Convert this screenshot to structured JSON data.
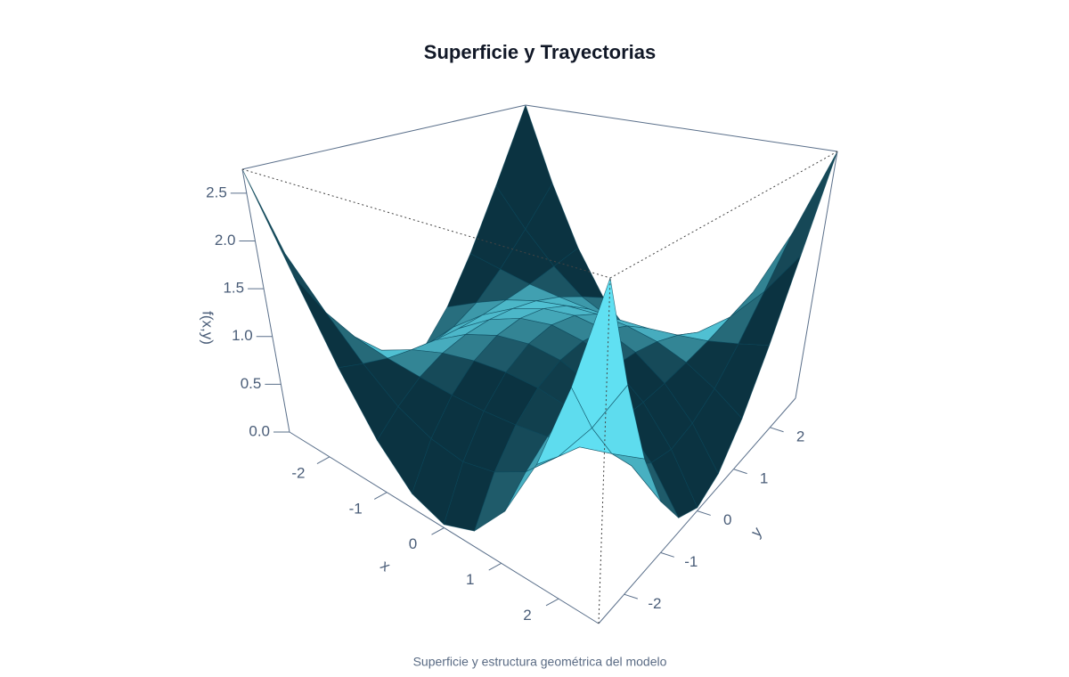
{
  "chart_data": {
    "type": "surface",
    "title": "Superficie y Trayectorias",
    "caption": "Superficie y estructura geométrica del modelo",
    "x_label": "x",
    "y_label": "y",
    "z_label": "f(x,y)",
    "x": [
      -2.7,
      -2.16,
      -1.62,
      -1.08,
      -0.54,
      0,
      0.54,
      1.08,
      1.62,
      2.16,
      2.7
    ],
    "y": [
      -2.7,
      -2.16,
      -1.62,
      -1.08,
      -0.54,
      0,
      0.54,
      1.08,
      1.62,
      2.16,
      2.7
    ],
    "z": [
      [
        2.75,
        1.77,
        1.01,
        0.47,
        0.14,
        0.03,
        0.14,
        0.47,
        1.01,
        1.77,
        2.75
      ],
      [
        1.77,
        1.3,
        0.93,
        0.66,
        0.51,
        0.45,
        0.51,
        0.66,
        0.93,
        1.3,
        1.77
      ],
      [
        1.01,
        0.93,
        0.86,
        0.82,
        0.79,
        0.78,
        0.79,
        0.82,
        0.86,
        0.93,
        1.01
      ],
      [
        0.47,
        0.66,
        0.82,
        0.93,
        0.99,
        1.01,
        0.99,
        0.93,
        0.82,
        0.66,
        0.47
      ],
      [
        0.14,
        0.51,
        0.79,
        0.99,
        1.11,
        1.15,
        1.11,
        0.99,
        0.79,
        0.51,
        0.14
      ],
      [
        0.03,
        0.45,
        0.78,
        1.01,
        1.15,
        1.2,
        1.15,
        1.01,
        0.78,
        0.45,
        0.03
      ],
      [
        0.14,
        0.51,
        0.79,
        0.99,
        1.11,
        1.15,
        1.11,
        0.99,
        0.79,
        0.51,
        0.14
      ],
      [
        0.47,
        0.66,
        0.82,
        0.93,
        0.99,
        1.01,
        0.99,
        0.93,
        0.82,
        0.66,
        0.47
      ],
      [
        1.01,
        0.93,
        0.86,
        0.82,
        0.79,
        0.78,
        0.79,
        0.82,
        0.86,
        0.93,
        1.01
      ],
      [
        1.77,
        1.3,
        0.93,
        0.66,
        0.51,
        0.45,
        0.51,
        0.66,
        0.93,
        1.3,
        1.77
      ],
      [
        2.75,
        1.77,
        1.01,
        0.47,
        0.14,
        0.03,
        0.14,
        0.47,
        1.01,
        1.77,
        2.75
      ]
    ],
    "xlim": [
      -2.7,
      2.7
    ],
    "ylim": [
      -2.7,
      2.7
    ],
    "zlim": [
      0,
      2.75
    ],
    "xticks": [
      -2,
      -1,
      0,
      1,
      2
    ],
    "yticks": [
      -2,
      -1,
      0,
      1,
      2
    ],
    "zticks": [
      {
        "value": 0,
        "label": "0.0"
      },
      0.5,
      {
        "value": 1,
        "label": "1.0"
      },
      1.5,
      {
        "value": 2,
        "label": "2.0"
      },
      2.5
    ],
    "colorscale": [
      "#0b3341",
      "#62e4f7"
    ]
  }
}
